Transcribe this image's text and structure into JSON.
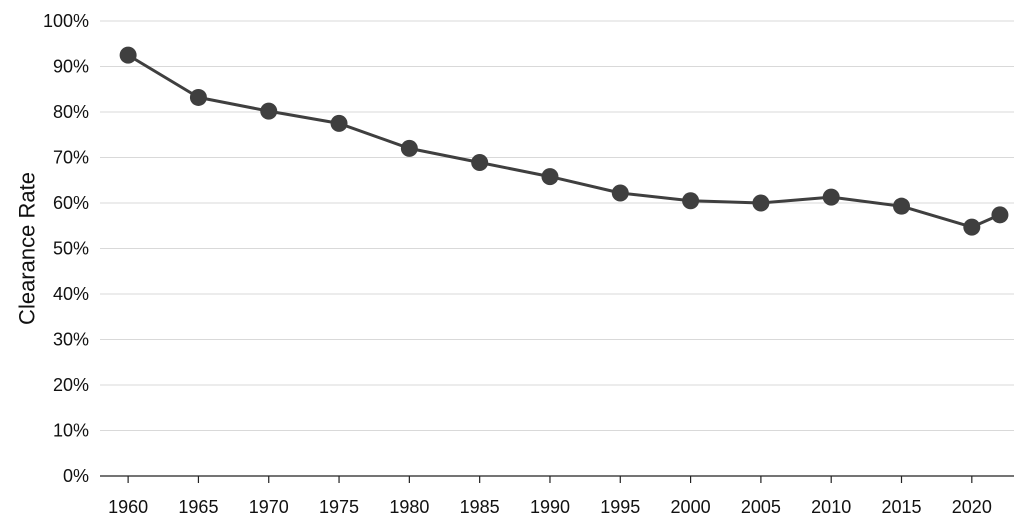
{
  "chart_data": {
    "type": "line",
    "title": "",
    "xlabel": "",
    "ylabel": "Clearance Rate",
    "y_unit": "%",
    "ylim": [
      0,
      100
    ],
    "y_ticks": [
      0,
      10,
      20,
      30,
      40,
      50,
      60,
      70,
      80,
      90,
      100
    ],
    "x_ticks": [
      1960,
      1965,
      1970,
      1975,
      1980,
      1985,
      1990,
      1995,
      2000,
      2005,
      2010,
      2015,
      2020
    ],
    "xlim": [
      1958,
      2023
    ],
    "grid": true,
    "legend": "none",
    "series": [
      {
        "color": "#3f3f3f",
        "x": [
          1960,
          1965,
          1970,
          1975,
          1980,
          1985,
          1990,
          1995,
          2000,
          2005,
          2010,
          2015,
          2020,
          2022
        ],
        "values": [
          92.5,
          83.2,
          80.2,
          77.5,
          72.0,
          68.9,
          65.8,
          62.2,
          60.5,
          60.0,
          61.3,
          59.3,
          54.7,
          57.4
        ]
      }
    ]
  }
}
